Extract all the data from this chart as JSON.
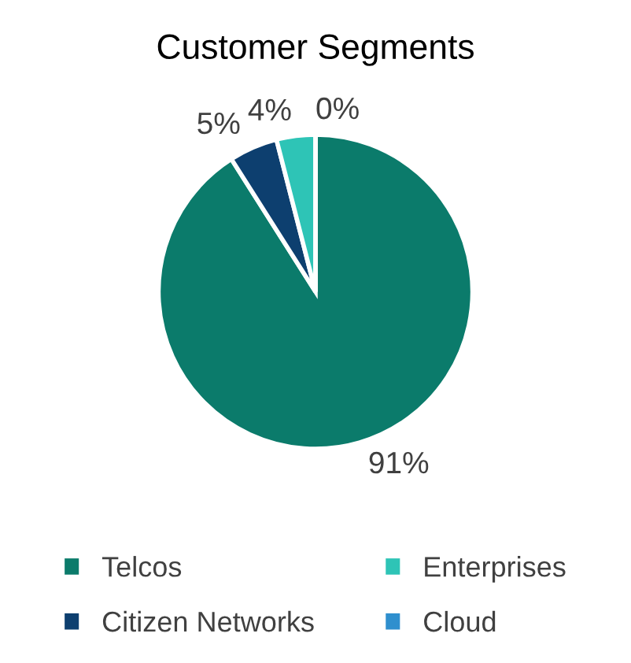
{
  "chart_data": {
    "type": "pie",
    "title": "Customer Segments",
    "categories": [
      "Telcos",
      "Citizen Networks",
      "Enterprises",
      "Cloud"
    ],
    "values": [
      91,
      5,
      4,
      0
    ],
    "colors": [
      "#0b7b6b",
      "#0d3f6f",
      "#2ec4b6",
      "#2f8fce"
    ],
    "value_labels": [
      "91%",
      "5%",
      "4%",
      "0%"
    ],
    "legend": "bottom"
  }
}
